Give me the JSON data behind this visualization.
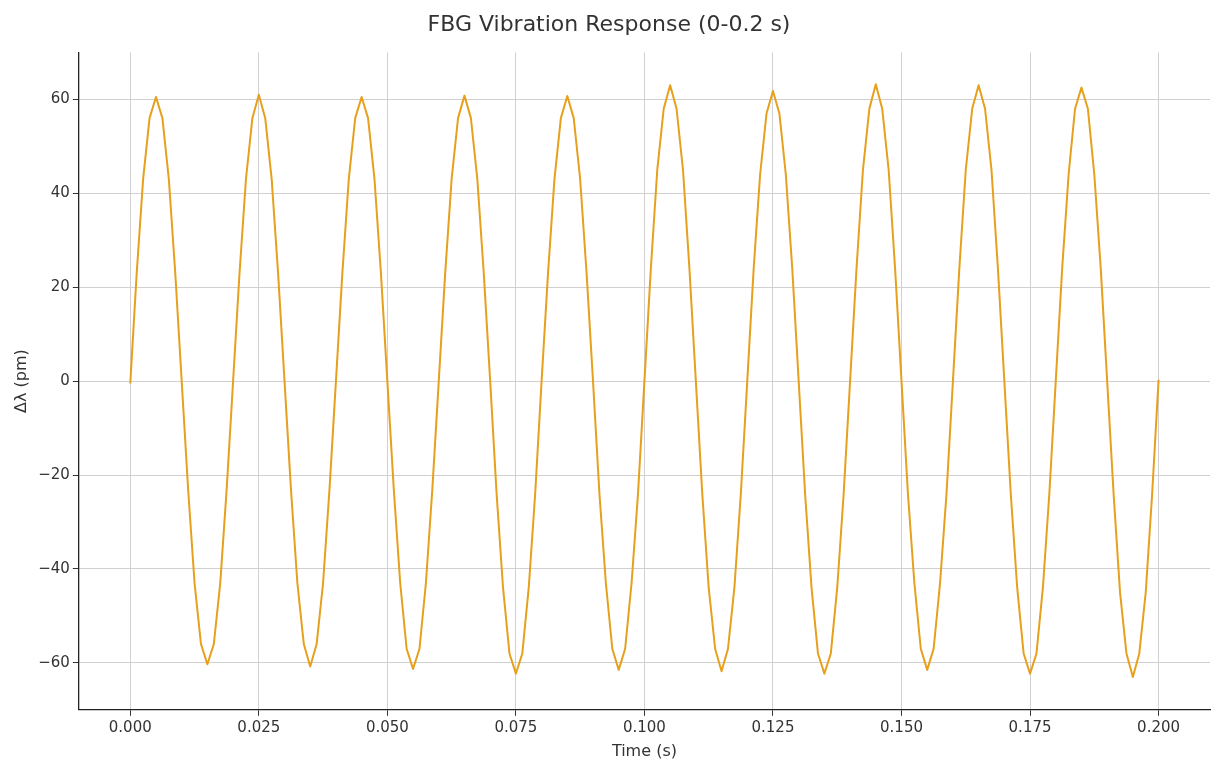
{
  "chart_data": {
    "type": "line",
    "title": "FBG Vibration Response (0-0.2 s)",
    "xlabel": "Time (s)",
    "ylabel": "Δλ (pm)",
    "xlim": [
      -0.01,
      0.21
    ],
    "xticks": [
      {
        "value": 0,
        "label": "0.000"
      },
      {
        "value": 0.025,
        "label": "0.025"
      },
      {
        "value": 0.05,
        "label": "0.050"
      },
      {
        "value": 0.075,
        "label": "0.075"
      },
      {
        "value": 0.1,
        "label": "0.100"
      },
      {
        "value": 0.125,
        "label": "0.125"
      },
      {
        "value": 0.15,
        "label": "0.150"
      },
      {
        "value": 0.175,
        "label": "0.175"
      },
      {
        "value": 0.2,
        "label": "0.200"
      }
    ],
    "ylim": [
      -70,
      70
    ],
    "yticks": [
      -60,
      -40,
      -20,
      0,
      20,
      40,
      60
    ],
    "grid": true,
    "legend": false,
    "marker": "none",
    "line_style": "solid",
    "x": [
      0,
      0.00125,
      0.0025,
      0.00375,
      0.005,
      0.00625,
      0.0075,
      0.00875,
      0.01,
      0.01125,
      0.0125,
      0.01375,
      0.015,
      0.01625,
      0.0175,
      0.01875,
      0.02,
      0.02125,
      0.0225,
      0.02375,
      0.025,
      0.02625,
      0.0275,
      0.02875,
      0.03,
      0.03125,
      0.0325,
      0.03375,
      0.035,
      0.03625,
      0.0375,
      0.03875,
      0.04,
      0.04125,
      0.0425,
      0.04375,
      0.045,
      0.04625,
      0.0475,
      0.04875,
      0.05,
      0.05125,
      0.0525,
      0.05375,
      0.055,
      0.05625,
      0.0575,
      0.05875,
      0.06,
      0.06125,
      0.0625,
      0.06375,
      0.065,
      0.06625,
      0.0675,
      0.06875,
      0.07,
      0.07125,
      0.0725,
      0.07375,
      0.075,
      0.07625,
      0.0775,
      0.07875,
      0.08,
      0.08125,
      0.0825,
      0.08375,
      0.085,
      0.08625,
      0.0875,
      0.08875,
      0.09,
      0.09125,
      0.0925,
      0.09375,
      0.095,
      0.09625,
      0.0975,
      0.09875,
      0.1,
      0.10125,
      0.1025,
      0.10375,
      0.105,
      0.10625,
      0.1075,
      0.10875,
      0.11,
      0.11125,
      0.1125,
      0.11375,
      0.115,
      0.11625,
      0.1175,
      0.11875,
      0.12,
      0.12125,
      0.1225,
      0.12375,
      0.125,
      0.12625,
      0.1275,
      0.12875,
      0.13,
      0.13125,
      0.1325,
      0.13375,
      0.135,
      0.13625,
      0.1375,
      0.13875,
      0.14,
      0.14125,
      0.1425,
      0.14375,
      0.145,
      0.14625,
      0.1475,
      0.14875,
      0.15,
      0.15125,
      0.1525,
      0.15375,
      0.155,
      0.15625,
      0.1575,
      0.15875,
      0.16,
      0.16125,
      0.1625,
      0.16375,
      0.165,
      0.16625,
      0.1675,
      0.16875,
      0.17,
      0.17125,
      0.1725,
      0.17375,
      0.175,
      0.17625,
      0.1775,
      0.17875,
      0.18,
      0.18125,
      0.1825,
      0.18375,
      0.185,
      0.18625,
      0.1875,
      0.18875,
      0.19,
      0.19125,
      0.1925,
      0.19375,
      0.195,
      0.19625,
      0.1975,
      0.19875,
      0.2
    ],
    "series": [
      {
        "color": "#e6a01c",
        "values": [
          -0.5,
          23,
          43,
          56,
          60.5,
          56,
          43,
          23,
          0,
          -23,
          -43,
          -56,
          -60.3,
          -56,
          -43,
          -23,
          0,
          23,
          43,
          56,
          61,
          56,
          43,
          23,
          0,
          -23,
          -43,
          -56,
          -60.8,
          -56,
          -43,
          -23,
          0,
          23,
          43,
          56,
          60.5,
          56,
          43,
          23,
          0,
          -23,
          -43,
          -57,
          -61.3,
          -57,
          -43,
          -23,
          0,
          23,
          43,
          56,
          60.8,
          56,
          43,
          23,
          0,
          -24,
          -44,
          -58,
          -62.3,
          -58,
          -44,
          -24,
          0,
          23,
          43,
          56,
          60.7,
          56,
          43,
          23,
          0,
          -24,
          -43,
          -57,
          -61.5,
          -57,
          -43,
          -24,
          0,
          24,
          45,
          58,
          63,
          58,
          45,
          24,
          0,
          -24,
          -44,
          -57,
          -61.8,
          -57,
          -44,
          -24,
          0,
          24,
          44,
          57,
          61.8,
          57,
          44,
          24,
          0,
          -24,
          -44,
          -58,
          -62.3,
          -58,
          -44,
          -24,
          0,
          24,
          45,
          58,
          63.2,
          58,
          45,
          24,
          0,
          -24,
          -43,
          -57,
          -61.5,
          -57,
          -43,
          -24,
          0,
          24,
          45,
          58,
          63,
          58,
          45,
          24,
          0,
          -24,
          -44,
          -58,
          -62.3,
          -58,
          -44,
          -24,
          0,
          24,
          44,
          58,
          62.5,
          58,
          44,
          24,
          0,
          -24,
          -45,
          -58,
          -63,
          -58,
          -45,
          -24,
          0.3
        ]
      }
    ]
  }
}
